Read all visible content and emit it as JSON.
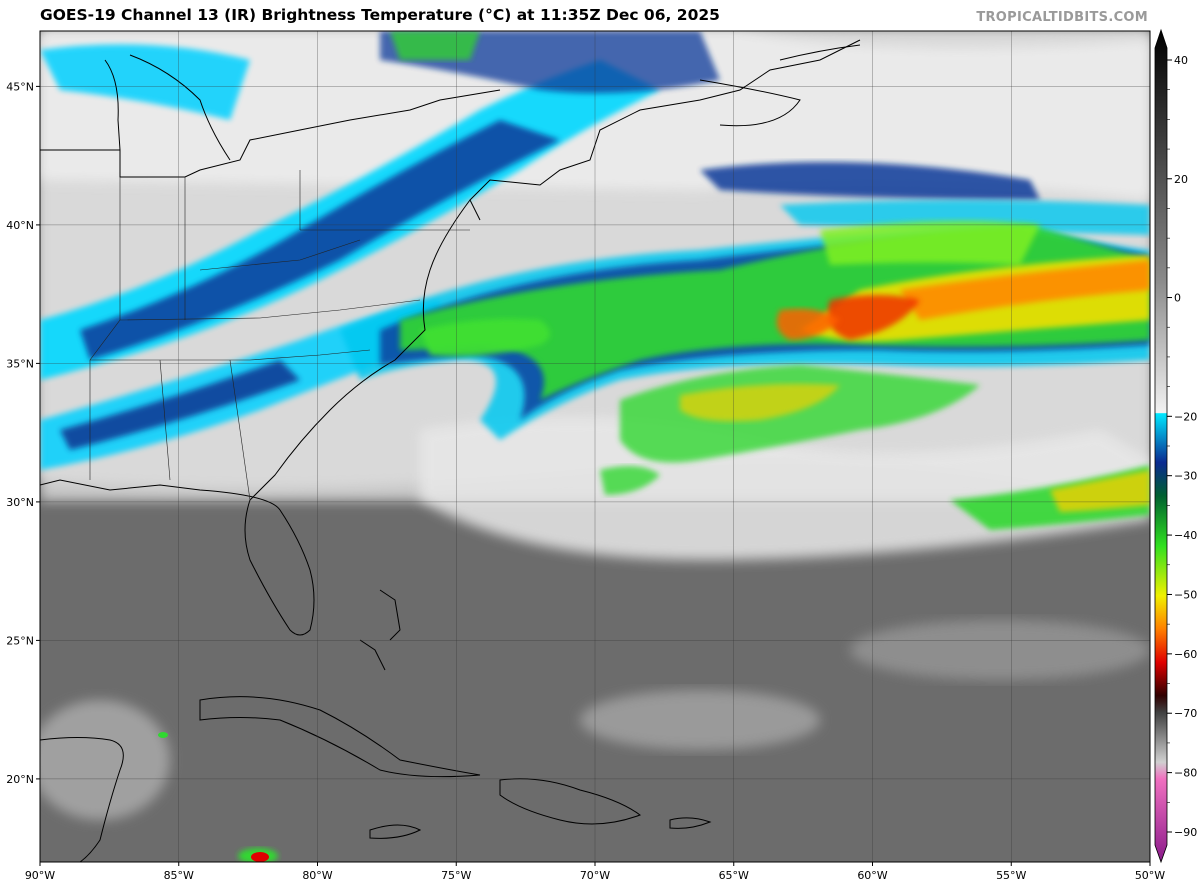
{
  "title": "GOES-19 Channel 13 (IR) Brightness Temperature (°C) at 11:35Z Dec 06, 2025",
  "brand": "TROPICALTIDBITS.COM",
  "map": {
    "lon_range": [
      -90,
      -50
    ],
    "lat_range": [
      17,
      47
    ],
    "lat_ticks": [
      {
        "value": 45,
        "label": "45°N"
      },
      {
        "value": 40,
        "label": "40°N"
      },
      {
        "value": 35,
        "label": "35°N"
      },
      {
        "value": 30,
        "label": "30°N"
      },
      {
        "value": 25,
        "label": "25°N"
      },
      {
        "value": 20,
        "label": "20°N"
      }
    ],
    "lon_ticks": [
      {
        "value": -90,
        "label": "90°W"
      },
      {
        "value": -85,
        "label": "85°W"
      },
      {
        "value": -80,
        "label": "80°W"
      },
      {
        "value": -75,
        "label": "75°W"
      },
      {
        "value": -70,
        "label": "70°W"
      },
      {
        "value": -65,
        "label": "65°W"
      },
      {
        "value": -60,
        "label": "60°W"
      },
      {
        "value": -55,
        "label": "55°W"
      },
      {
        "value": -50,
        "label": "50°W"
      }
    ],
    "grid": true
  },
  "colorbar": {
    "range": [
      -90,
      40
    ],
    "tick_labels": [
      "40",
      "20",
      "0",
      "−20",
      "−30",
      "−40",
      "−50",
      "−60",
      "−70",
      "−80",
      "−90"
    ],
    "tick_values": [
      40,
      20,
      0,
      -20,
      -30,
      -40,
      -50,
      -60,
      -70,
      -80,
      -90
    ]
  },
  "colors": {
    "cold_purple": "#8a1a8a",
    "white": "#ffffff",
    "cyan": "#00e0ff",
    "dark_blue": "#0a2a8a",
    "green": "#20c020",
    "yellow": "#f0f000",
    "orange": "#ff8000",
    "red": "#e00000",
    "warm_gray": "#6e6e6e",
    "black": "#000000"
  }
}
